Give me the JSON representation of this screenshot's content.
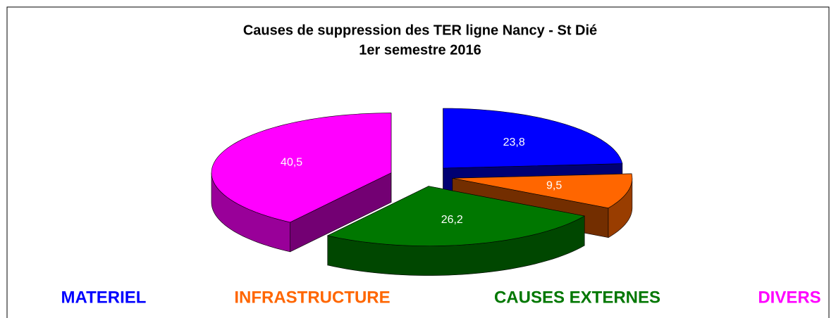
{
  "chart_data": {
    "type": "pie3d",
    "title": "Causes de suppression des TER ligne Nancy - St Dié",
    "subtitle": "1er semestre 2016",
    "categories": [
      "MATERIEL",
      "INFRASTRUCTURE",
      "CAUSES EXTERNES",
      "DIVERS"
    ],
    "values": [
      23.8,
      9.5,
      26.2,
      40.5
    ],
    "value_labels": [
      "23,8",
      "9,5",
      "26,2",
      "40,5"
    ],
    "colors": [
      "#0000ff",
      "#ff6600",
      "#007700",
      "#ff00ff"
    ],
    "legend": "bottom"
  }
}
